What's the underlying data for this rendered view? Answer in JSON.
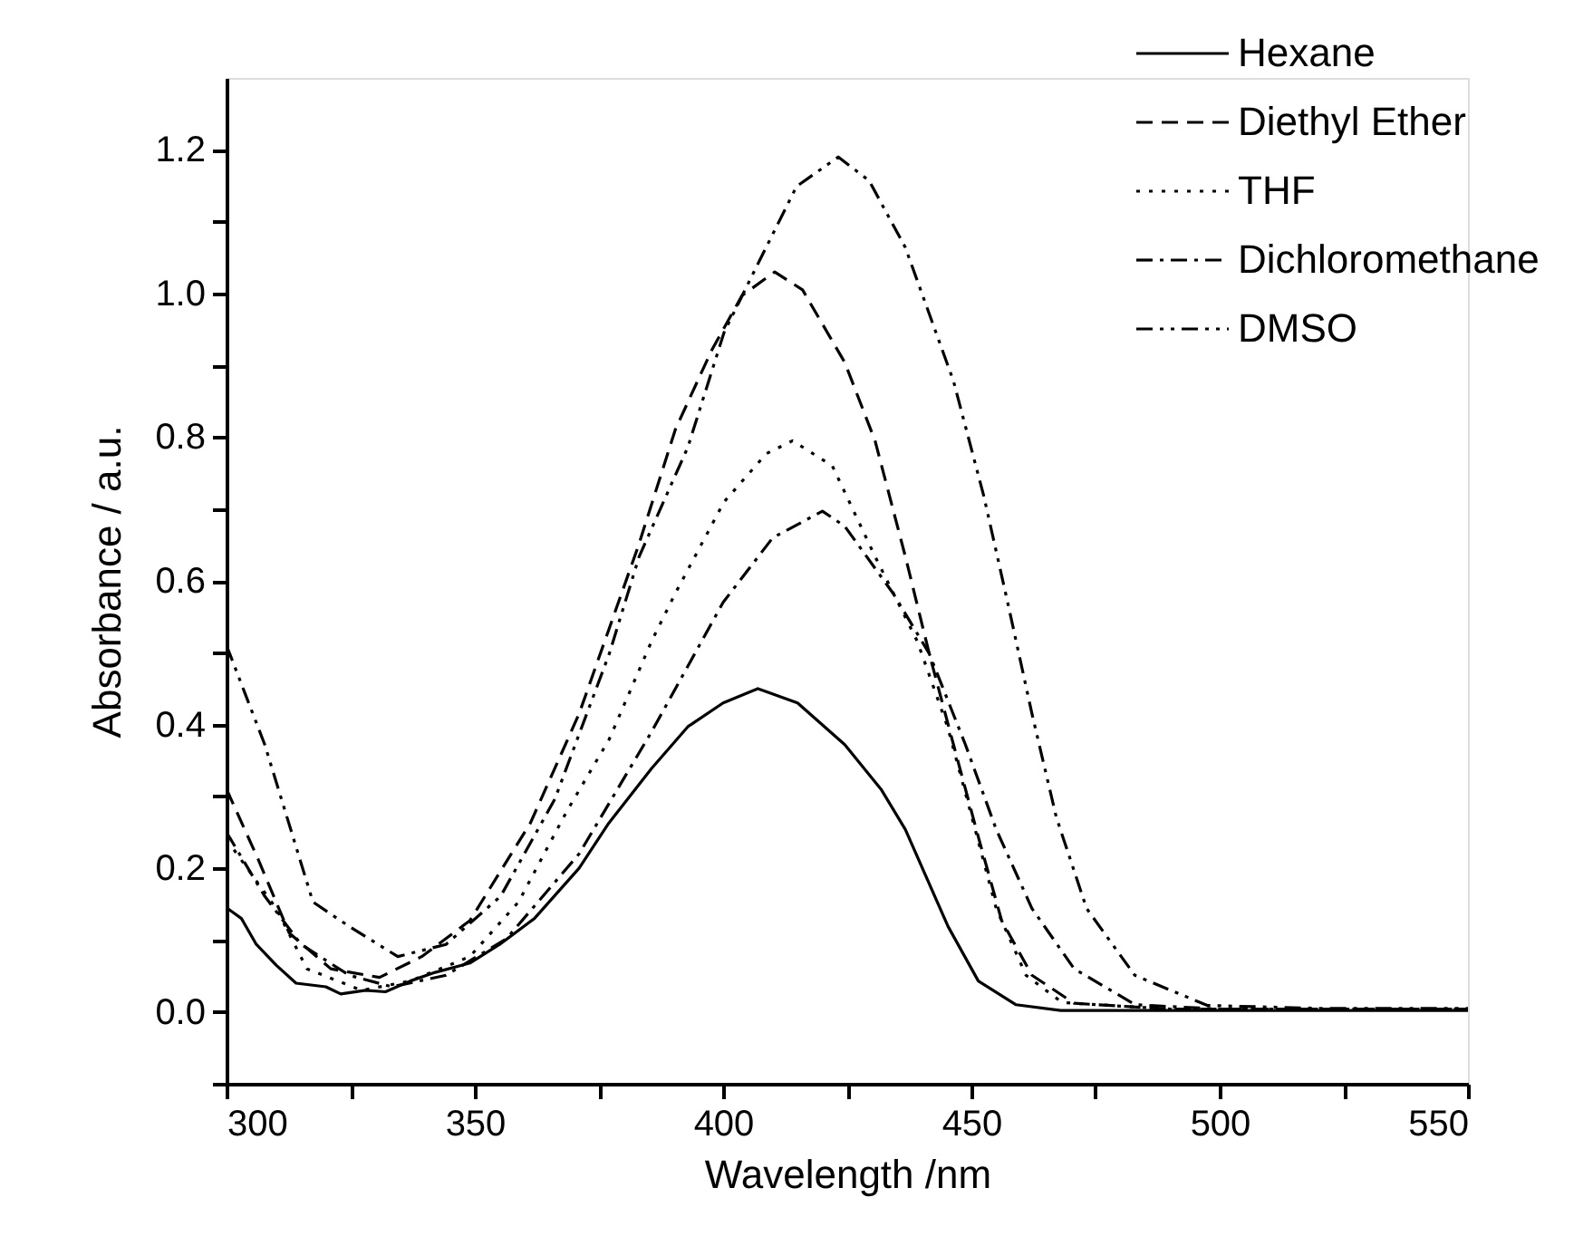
{
  "chart_data": {
    "type": "line",
    "xlabel": "Wavelength /nm",
    "ylabel": "Absorbance / a.u.",
    "xlim": [
      300,
      550
    ],
    "ylim": [
      -0.1,
      1.3
    ],
    "xticks": [
      300,
      {
        "value": 325,
        "label": null
      },
      350,
      {
        "value": 375,
        "label": null
      },
      400,
      {
        "value": 425,
        "label": null
      },
      450,
      {
        "value": 475,
        "label": null
      },
      500,
      {
        "value": 525,
        "label": null
      },
      550
    ],
    "yticks": [
      {
        "value": -0.1,
        "label": null
      },
      "0.0",
      {
        "value": 0.1,
        "label": null
      },
      0.2,
      {
        "value": 0.3,
        "label": null
      },
      0.4,
      {
        "value": 0.5,
        "label": null
      },
      0.6,
      {
        "value": 0.7,
        "label": null
      },
      0.8,
      {
        "value": 0.9,
        "label": null
      },
      "1.0",
      {
        "value": 1.1,
        "label": null
      },
      1.2
    ],
    "grid": false,
    "legend": "top right",
    "marker": "none",
    "series": [
      {
        "name": "Hexane",
        "color": "#000000",
        "line_style": "solid",
        "x": [
          300,
          303,
          306,
          310,
          314,
          320,
          323,
          328,
          332,
          337,
          342,
          349,
          355,
          362,
          371,
          377,
          385.6,
          392.9,
          400,
          407,
          415,
          424.5,
          431.8,
          436.7,
          445.3,
          451.4,
          459,
          468,
          480,
          500,
          520,
          550
        ],
        "values": [
          0.145,
          0.13,
          0.094,
          0.065,
          0.04,
          0.035,
          0.025,
          0.03,
          0.028,
          0.043,
          0.055,
          0.068,
          0.094,
          0.13,
          0.2,
          0.263,
          0.339,
          0.397,
          0.43,
          0.45,
          0.43,
          0.372,
          0.31,
          0.254,
          0.119,
          0.043,
          0.01,
          0.002,
          0.002,
          0.002,
          0.002,
          0.002
        ]
      },
      {
        "name": "Diethyl Ether",
        "color": "#000000",
        "line_style": "dashed",
        "x": [
          300,
          306.4,
          312.6,
          321,
          330.8,
          339.3,
          349,
          361.2,
          371,
          383,
          390.4,
          397.7,
          403.8,
          410.4,
          416,
          424.5,
          430.6,
          436.7,
          441.5,
          446.4,
          451.3,
          456.1,
          462.2,
          470.7,
          490,
          520,
          550
        ],
        "values": [
          0.31,
          0.212,
          0.11,
          0.06,
          0.048,
          0.077,
          0.127,
          0.263,
          0.415,
          0.65,
          0.811,
          0.921,
          0.997,
          1.03,
          1.005,
          0.904,
          0.795,
          0.634,
          0.499,
          0.372,
          0.246,
          0.127,
          0.051,
          0.012,
          0.004,
          0.004,
          0.004
        ]
      },
      {
        "name": "THF",
        "color": "#000000",
        "line_style": "dotted",
        "x": [
          300,
          310,
          316.2,
          327.2,
          337,
          349,
          358.8,
          368.5,
          377.1,
          385.6,
          390.4,
          400.2,
          408.7,
          414,
          422,
          430.6,
          439.1,
          445.2,
          450.1,
          455,
          461,
          468.3,
          490,
          520,
          550
        ],
        "values": [
          0.24,
          0.144,
          0.06,
          0.03,
          0.043,
          0.077,
          0.153,
          0.279,
          0.38,
          0.516,
          0.583,
          0.71,
          0.777,
          0.795,
          0.76,
          0.634,
          0.516,
          0.397,
          0.271,
          0.144,
          0.051,
          0.013,
          0.004,
          0.004,
          0.004
        ]
      },
      {
        "name": "Dichloromethane",
        "color": "#000000",
        "line_style": "dashdot",
        "x": [
          300,
          307.7,
          315,
          324.7,
          333.3,
          344.2,
          356.4,
          371,
          385.6,
          400,
          410,
          420,
          424.5,
          434.2,
          441.5,
          448.8,
          455,
          462.2,
          470.7,
          483,
          500,
          520,
          550
        ],
        "values": [
          0.25,
          0.161,
          0.094,
          0.051,
          0.035,
          0.051,
          0.102,
          0.22,
          0.39,
          0.57,
          0.66,
          0.697,
          0.676,
          0.583,
          0.499,
          0.372,
          0.254,
          0.144,
          0.06,
          0.01,
          0.004,
          0.004,
          0.004
        ]
      },
      {
        "name": "DMSO",
        "color": "#000000",
        "line_style": "dashdotdot",
        "x": [
          300,
          307.7,
          317.4,
          324.7,
          334.5,
          344.2,
          355.2,
          366.1,
          377.1,
          383.1,
          392.9,
          400.2,
          407.5,
          414.8,
          423.2,
          429.4,
          436.7,
          446.4,
          452.5,
          457.4,
          462.2,
          467.1,
          473.2,
          482.9,
          497.5,
          520,
          550
        ],
        "values": [
          0.51,
          0.372,
          0.153,
          0.119,
          0.077,
          0.094,
          0.161,
          0.296,
          0.499,
          0.634,
          0.786,
          0.946,
          1.048,
          1.149,
          1.19,
          1.157,
          1.064,
          0.878,
          0.718,
          0.567,
          0.415,
          0.271,
          0.144,
          0.051,
          0.009,
          0.005,
          0.005
        ]
      }
    ]
  }
}
